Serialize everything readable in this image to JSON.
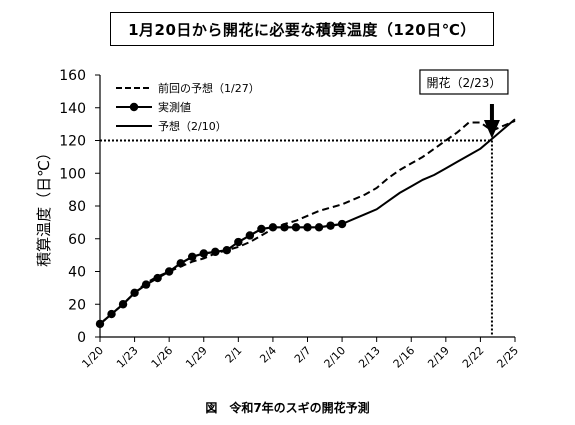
{
  "header": {
    "title": "1月20日から開花に必要な積算温度（120日℃）"
  },
  "caption": "図　令和7年のスギの開花予測",
  "chart_data": {
    "type": "line",
    "ylabel": "積算温度（日℃）",
    "xlabel": "",
    "ylim": [
      0,
      160
    ],
    "yticks": [
      0,
      20,
      40,
      60,
      80,
      100,
      120,
      140,
      160
    ],
    "xlim": [
      0,
      36
    ],
    "xtick_labels": [
      {
        "x": 0,
        "label": "1/20"
      },
      {
        "x": 3,
        "label": "1/23"
      },
      {
        "x": 6,
        "label": "1/26"
      },
      {
        "x": 9,
        "label": "1/29"
      },
      {
        "x": 12,
        "label": "2/1"
      },
      {
        "x": 15,
        "label": "2/4"
      },
      {
        "x": 18,
        "label": "2/7"
      },
      {
        "x": 21,
        "label": "2/10"
      },
      {
        "x": 24,
        "label": "2/13"
      },
      {
        "x": 27,
        "label": "2/16"
      },
      {
        "x": 30,
        "label": "2/19"
      },
      {
        "x": 33,
        "label": "2/22"
      },
      {
        "x": 36,
        "label": "2/25"
      }
    ],
    "threshold": 120,
    "series": [
      {
        "name": "前回の予想（1/27）",
        "style": "dashed",
        "x": [
          0,
          1,
          2,
          3,
          4,
          5,
          6,
          7,
          8,
          9,
          10,
          11,
          12,
          13,
          14,
          15,
          16,
          17,
          18,
          19,
          20,
          21,
          22,
          23,
          24,
          25,
          26,
          27,
          28,
          29,
          30,
          31,
          32,
          33,
          34,
          35,
          36
        ],
        "y": [
          8,
          14,
          20,
          27,
          33,
          37,
          40,
          43,
          46,
          48,
          51,
          53,
          55,
          58,
          62,
          66,
          69,
          71,
          74,
          77,
          79,
          81,
          84,
          87,
          91,
          97,
          102,
          106,
          110,
          115,
          120,
          125,
          131,
          131,
          126,
          129,
          132
        ]
      },
      {
        "name": "実測値",
        "style": "solid-markers",
        "x": [
          0,
          1,
          2,
          3,
          4,
          5,
          6,
          7,
          8,
          9,
          10,
          11,
          12,
          13,
          14,
          15,
          16,
          17,
          18,
          19,
          20,
          21
        ],
        "y": [
          8,
          14,
          20,
          27,
          32,
          36,
          40,
          45,
          49,
          51,
          52,
          53,
          58,
          62,
          66,
          67,
          67,
          67,
          67,
          67,
          68,
          69
        ]
      },
      {
        "name": "予想（2/10）",
        "style": "solid",
        "x": [
          21,
          22,
          23,
          24,
          25,
          26,
          27,
          28,
          29,
          30,
          31,
          32,
          33,
          34,
          35,
          36
        ],
        "y": [
          69,
          72,
          75,
          78,
          83,
          88,
          92,
          96,
          99,
          103,
          107,
          111,
          115,
          121,
          127,
          133
        ]
      }
    ],
    "annotation": {
      "label": "開花（2/23）",
      "x": 34,
      "y": 120
    },
    "legend_position": "top-left"
  }
}
